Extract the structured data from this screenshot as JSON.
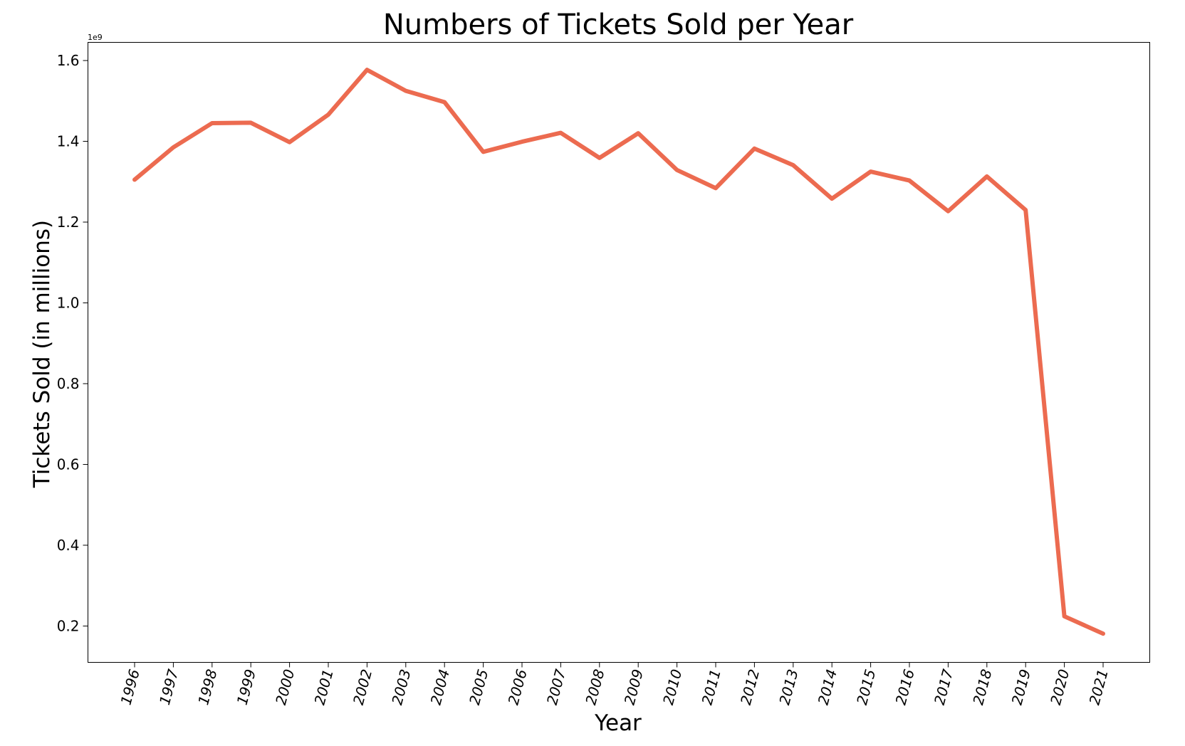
{
  "chart_data": {
    "type": "line",
    "title": "Numbers of Tickets Sold per Year",
    "xlabel": "Year",
    "ylabel": "Tickets Sold (in millions)",
    "y_offset_label": "1e9",
    "categories": [
      "1996",
      "1997",
      "1998",
      "1999",
      "2000",
      "2001",
      "2002",
      "2003",
      "2004",
      "2005",
      "2006",
      "2007",
      "2008",
      "2009",
      "2010",
      "2011",
      "2012",
      "2013",
      "2014",
      "2015",
      "2016",
      "2017",
      "2018",
      "2019",
      "2020",
      "2021"
    ],
    "series": [
      {
        "color": "#ec6b50",
        "values": [
          1.305,
          1.385,
          1.445,
          1.446,
          1.398,
          1.466,
          1.577,
          1.525,
          1.497,
          1.374,
          1.399,
          1.421,
          1.359,
          1.42,
          1.329,
          1.284,
          1.382,
          1.341,
          1.258,
          1.325,
          1.303,
          1.227,
          1.313,
          1.23,
          0.224,
          0.181
        ]
      }
    ],
    "yticks": [
      0.2,
      0.4,
      0.6,
      0.8,
      1.0,
      1.2,
      1.4,
      1.6
    ],
    "ytick_labels": [
      "0.2",
      "0.4",
      "0.6",
      "0.8",
      "1.0",
      "1.2",
      "1.4",
      "1.6"
    ],
    "ylim": [
      0.11,
      1.645
    ],
    "grid": false,
    "legend": "none"
  }
}
